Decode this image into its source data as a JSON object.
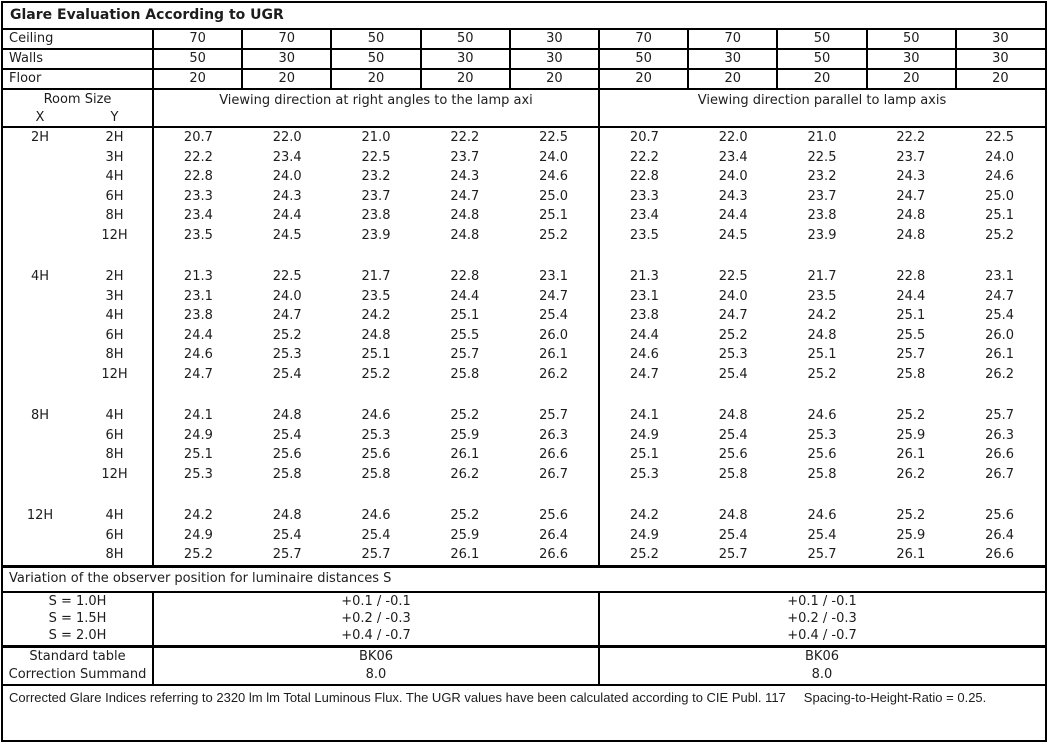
{
  "title": "Glare Evaluation According to UGR",
  "surface_rows": [
    {
      "label": "Ceiling",
      "values": [
        "70",
        "70",
        "50",
        "50",
        "30",
        "70",
        "70",
        "50",
        "50",
        "30"
      ]
    },
    {
      "label": "Walls",
      "values": [
        "50",
        "30",
        "50",
        "30",
        "30",
        "50",
        "30",
        "50",
        "30",
        "30"
      ]
    },
    {
      "label": "Floor",
      "values": [
        "20",
        "20",
        "20",
        "20",
        "20",
        "20",
        "20",
        "20",
        "20",
        "20"
      ]
    }
  ],
  "header": {
    "room_size": "Room Size",
    "x": "X",
    "y": "Y",
    "viewing_right_angles": "Viewing direction at right angles to the lamp axi",
    "viewing_parallel": "Viewing direction parallel to lamp axis"
  },
  "ugr_blocks": [
    {
      "x": "2H",
      "rows": [
        {
          "y": "2H",
          "ugr_right_angles": [
            "20.7",
            "22.0",
            "21.0",
            "22.2",
            "22.5"
          ],
          "ugr_parallel": [
            "20.7",
            "22.0",
            "21.0",
            "22.2",
            "22.5"
          ]
        },
        {
          "y": "3H",
          "ugr_right_angles": [
            "22.2",
            "23.4",
            "22.5",
            "23.7",
            "24.0"
          ],
          "ugr_parallel": [
            "22.2",
            "23.4",
            "22.5",
            "23.7",
            "24.0"
          ]
        },
        {
          "y": "4H",
          "ugr_right_angles": [
            "22.8",
            "24.0",
            "23.2",
            "24.3",
            "24.6"
          ],
          "ugr_parallel": [
            "22.8",
            "24.0",
            "23.2",
            "24.3",
            "24.6"
          ]
        },
        {
          "y": "6H",
          "ugr_right_angles": [
            "23.3",
            "24.3",
            "23.7",
            "24.7",
            "25.0"
          ],
          "ugr_parallel": [
            "23.3",
            "24.3",
            "23.7",
            "24.7",
            "25.0"
          ]
        },
        {
          "y": "8H",
          "ugr_right_angles": [
            "23.4",
            "24.4",
            "23.8",
            "24.8",
            "25.1"
          ],
          "ugr_parallel": [
            "23.4",
            "24.4",
            "23.8",
            "24.8",
            "25.1"
          ]
        },
        {
          "y": "12H",
          "ugr_right_angles": [
            "23.5",
            "24.5",
            "23.9",
            "24.8",
            "25.2"
          ],
          "ugr_parallel": [
            "23.5",
            "24.5",
            "23.9",
            "24.8",
            "25.2"
          ]
        }
      ]
    },
    {
      "x": "4H",
      "rows": [
        {
          "y": "2H",
          "ugr_right_angles": [
            "21.3",
            "22.5",
            "21.7",
            "22.8",
            "23.1"
          ],
          "ugr_parallel": [
            "21.3",
            "22.5",
            "21.7",
            "22.8",
            "23.1"
          ]
        },
        {
          "y": "3H",
          "ugr_right_angles": [
            "23.1",
            "24.0",
            "23.5",
            "24.4",
            "24.7"
          ],
          "ugr_parallel": [
            "23.1",
            "24.0",
            "23.5",
            "24.4",
            "24.7"
          ]
        },
        {
          "y": "4H",
          "ugr_right_angles": [
            "23.8",
            "24.7",
            "24.2",
            "25.1",
            "25.4"
          ],
          "ugr_parallel": [
            "23.8",
            "24.7",
            "24.2",
            "25.1",
            "25.4"
          ]
        },
        {
          "y": "6H",
          "ugr_right_angles": [
            "24.4",
            "25.2",
            "24.8",
            "25.5",
            "26.0"
          ],
          "ugr_parallel": [
            "24.4",
            "25.2",
            "24.8",
            "25.5",
            "26.0"
          ]
        },
        {
          "y": "8H",
          "ugr_right_angles": [
            "24.6",
            "25.3",
            "25.1",
            "25.7",
            "26.1"
          ],
          "ugr_parallel": [
            "24.6",
            "25.3",
            "25.1",
            "25.7",
            "26.1"
          ]
        },
        {
          "y": "12H",
          "ugr_right_angles": [
            "24.7",
            "25.4",
            "25.2",
            "25.8",
            "26.2"
          ],
          "ugr_parallel": [
            "24.7",
            "25.4",
            "25.2",
            "25.8",
            "26.2"
          ]
        }
      ]
    },
    {
      "x": "8H",
      "rows": [
        {
          "y": "4H",
          "ugr_right_angles": [
            "24.1",
            "24.8",
            "24.6",
            "25.2",
            "25.7"
          ],
          "ugr_parallel": [
            "24.1",
            "24.8",
            "24.6",
            "25.2",
            "25.7"
          ]
        },
        {
          "y": "6H",
          "ugr_right_angles": [
            "24.9",
            "25.4",
            "25.3",
            "25.9",
            "26.3"
          ],
          "ugr_parallel": [
            "24.9",
            "25.4",
            "25.3",
            "25.9",
            "26.3"
          ]
        },
        {
          "y": "8H",
          "ugr_right_angles": [
            "25.1",
            "25.6",
            "25.6",
            "26.1",
            "26.6"
          ],
          "ugr_parallel": [
            "25.1",
            "25.6",
            "25.6",
            "26.1",
            "26.6"
          ]
        },
        {
          "y": "12H",
          "ugr_right_angles": [
            "25.3",
            "25.8",
            "25.8",
            "26.2",
            "26.7"
          ],
          "ugr_parallel": [
            "25.3",
            "25.8",
            "25.8",
            "26.2",
            "26.7"
          ]
        }
      ]
    },
    {
      "x": "12H",
      "rows": [
        {
          "y": "4H",
          "ugr_right_angles": [
            "24.2",
            "24.8",
            "24.6",
            "25.2",
            "25.6"
          ],
          "ugr_parallel": [
            "24.2",
            "24.8",
            "24.6",
            "25.2",
            "25.6"
          ]
        },
        {
          "y": "6H",
          "ugr_right_angles": [
            "24.9",
            "25.4",
            "25.4",
            "25.9",
            "26.4"
          ],
          "ugr_parallel": [
            "24.9",
            "25.4",
            "25.4",
            "25.9",
            "26.4"
          ]
        },
        {
          "y": "8H",
          "ugr_right_angles": [
            "25.2",
            "25.7",
            "25.7",
            "26.1",
            "26.6"
          ],
          "ugr_parallel": [
            "25.2",
            "25.7",
            "25.7",
            "26.1",
            "26.6"
          ]
        }
      ]
    }
  ],
  "variation": {
    "heading": "Variation of the observer position for luminaire distances S",
    "rows": [
      {
        "label": "S = 1.0H",
        "left": "+0.1 / -0.1",
        "right": "+0.1 / -0.1"
      },
      {
        "label": "S = 1.5H",
        "left": "+0.2 / -0.3",
        "right": "+0.2 / -0.3"
      },
      {
        "label": "S = 2.0H",
        "left": "+0.4 / -0.7",
        "right": "+0.4 / -0.7"
      }
    ]
  },
  "summary": {
    "rows": [
      {
        "label": "Standard table",
        "left": "BK06",
        "right": "BK06"
      },
      {
        "label": "Correction Summand",
        "left": "8.0",
        "right": "8.0"
      }
    ]
  },
  "footer": {
    "text": "Corrected Glare Indices referring to 2320 lm lm Total Luminous Flux. The UGR values have been calculated according to CIE Publ. 117",
    "note": "Spacing-to-Height-Ratio = 0.25."
  },
  "colors": {
    "border": "#000000",
    "text": "#1d1d1d",
    "background": "#ffffff"
  }
}
